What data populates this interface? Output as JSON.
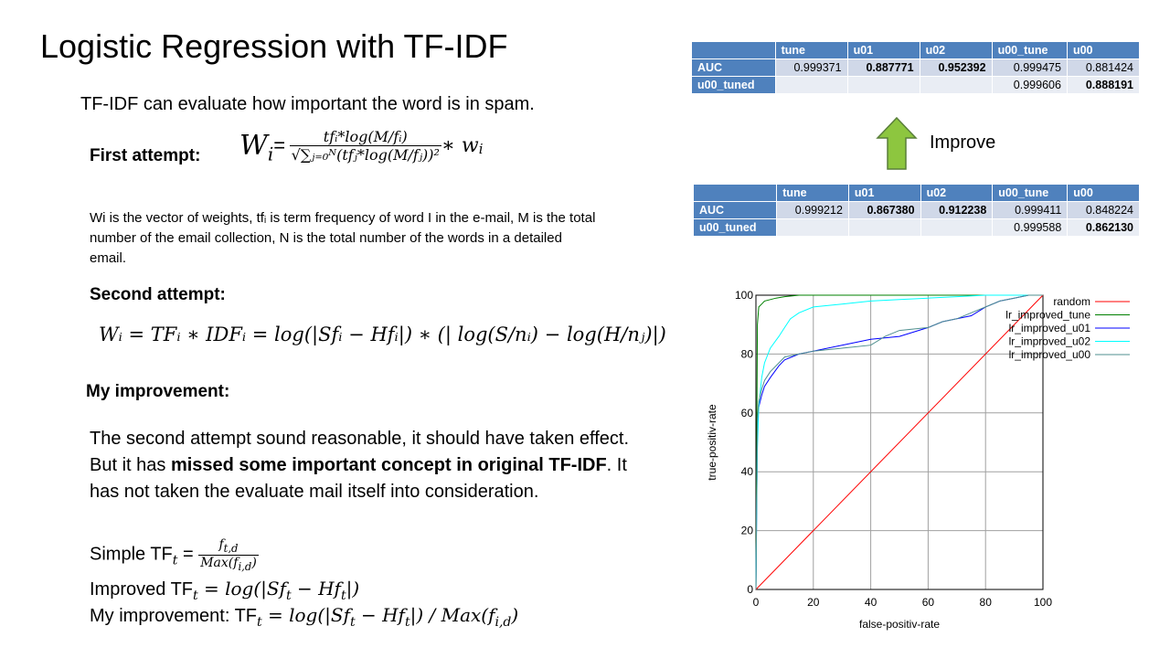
{
  "slide": {
    "title": "Logistic Regression with TF-IDF",
    "intro": "TF-IDF can evaluate how important the word is in spam.",
    "first_attempt": {
      "label": "First attempt:",
      "lhs": "W",
      "lhs_sub": "i",
      "numerator": "tfᵢ*log(M/fᵢ)",
      "denominator": "√∑ⱼ₌₀ᴺ(tfⱼ*log(M/fⱼ))²",
      "times": "∗ w",
      "times_sub": "i"
    },
    "description": "Wi is the vector of weights, tfᵢ is term frequency of word I in the e-mail, M is the total number of the email collection, N is the total number of the words in a detailed email.",
    "second_attempt": {
      "label": "Second attempt:",
      "formula": "Wᵢ = TFᵢ ∗ IDFᵢ = log(|Sfᵢ − Hfᵢ|) ∗ (| log(S/nᵢ) − log(H/nⱼ)|)"
    },
    "my_improvement": {
      "label": "My improvement:",
      "p1": "The second attempt sound reasonable, it should have taken effect. But it has ",
      "p1_bold": "missed some important concept in original TF-IDF",
      "p1_end": ". It has not taken the evaluate mail itself into consideration.",
      "simple_prefix": "Simple TF",
      "simple_sub": "t",
      "simple_eq": " = ",
      "simple_num": "f",
      "simple_num_sub": "t,d",
      "simple_den": "Max(f",
      "simple_den_sub": "i,d",
      "simple_den_end": ")",
      "improved_prefix": "Improved TF",
      "improved_sub": "t",
      "improved_rest": " = log(|Sf",
      "improved_sub2": "t",
      "improved_rest2": " − Hf",
      "improved_sub3": "t",
      "improved_rest3": "|)",
      "mine_prefix": "My improvement: TF",
      "mine_sub": "t",
      "mine_rest": " = log(|Sf",
      "mine_sub2": "t",
      "mine_rest2": " − Hf",
      "mine_sub3": "t",
      "mine_rest3": "|) / Max(f",
      "mine_sub4": "i,d",
      "mine_rest4": ")"
    },
    "improve_label": "Improve",
    "arrow_color": "#8dc63f"
  },
  "tables": {
    "top": {
      "headers": [
        "",
        "tune",
        "u01",
        "u02",
        "u00_tune",
        "u00"
      ],
      "rows": [
        [
          "AUC",
          "0.999371",
          "0.887771",
          "0.952392",
          "0.999475",
          "0.881424"
        ],
        [
          "u00_tuned",
          "",
          "",
          "",
          "0.999606",
          "0.888191"
        ]
      ]
    },
    "bottom": {
      "headers": [
        "",
        "tune",
        "u01",
        "u02",
        "u00_tune",
        "u00"
      ],
      "rows": [
        [
          "AUC",
          "0.999212",
          "0.867380",
          "0.912238",
          "0.999411",
          "0.848224"
        ],
        [
          "u00_tuned",
          "",
          "",
          "",
          "0.999588",
          "0.862130"
        ]
      ]
    }
  },
  "chart_data": {
    "type": "line",
    "xlabel": "false-positiv-rate",
    "ylabel": "true-positiv-rate",
    "xlim": [
      0,
      100
    ],
    "ylim": [
      0,
      100
    ],
    "xticks": [
      0,
      20,
      40,
      60,
      80,
      100
    ],
    "yticks": [
      0,
      20,
      40,
      60,
      80,
      100
    ],
    "grid": true,
    "legend_position": "top-right",
    "series": [
      {
        "name": "random",
        "color": "#ff0000",
        "x": [
          0,
          100
        ],
        "y": [
          0,
          100
        ]
      },
      {
        "name": "lr_improved_tune",
        "color": "#008000",
        "x": [
          0,
          0.5,
          1,
          2,
          3,
          5,
          7,
          10,
          15,
          20,
          40,
          60,
          80,
          100
        ],
        "y": [
          0,
          90,
          96,
          97,
          98,
          98.5,
          99,
          99.5,
          100,
          100,
          100,
          100,
          100,
          100
        ]
      },
      {
        "name": "lr_improved_u01",
        "color": "#0000ff",
        "x": [
          0,
          0.5,
          1,
          2,
          3,
          5,
          8,
          10,
          15,
          20,
          30,
          40,
          50,
          60,
          65,
          70,
          75,
          80,
          85,
          90,
          95,
          100
        ],
        "y": [
          0,
          55,
          62,
          66,
          69,
          72,
          76,
          78,
          80,
          81,
          83,
          85,
          86,
          89,
          91,
          92,
          93,
          96,
          98,
          99,
          100,
          100
        ]
      },
      {
        "name": "lr_improved_u02",
        "color": "#00ffff",
        "x": [
          0,
          0.3,
          0.5,
          1,
          2,
          3,
          5,
          8,
          10,
          12,
          15,
          20,
          30,
          40,
          50,
          60,
          70,
          80,
          90,
          100
        ],
        "y": [
          0,
          30,
          48,
          62,
          72,
          77,
          82,
          86,
          89,
          92,
          94,
          96,
          97,
          98,
          98.5,
          99,
          99.5,
          100,
          100,
          100
        ]
      },
      {
        "name": "lr_improved_u00",
        "color": "#4f8f8f",
        "x": [
          0,
          0.5,
          1,
          2,
          3,
          5,
          8,
          10,
          15,
          20,
          30,
          40,
          45,
          50,
          60,
          65,
          70,
          75,
          80,
          85,
          90,
          95,
          100
        ],
        "y": [
          0,
          58,
          64,
          68,
          71,
          74,
          77,
          79,
          80,
          81,
          82,
          83,
          86,
          88,
          89,
          91,
          92,
          94,
          96,
          98,
          99,
          100,
          100
        ]
      }
    ]
  }
}
